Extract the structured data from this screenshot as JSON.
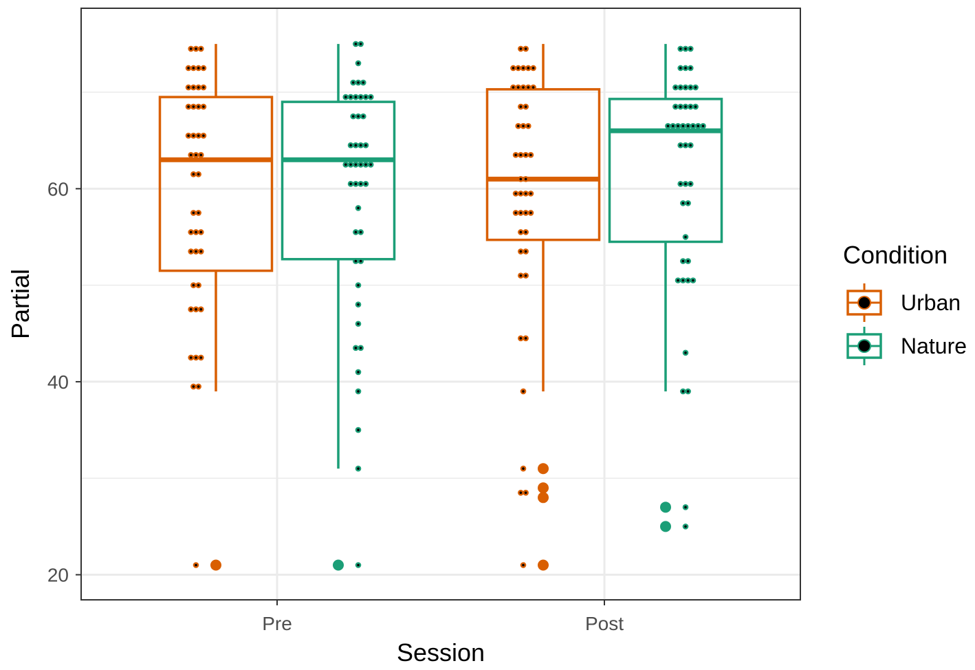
{
  "chart_data": {
    "type": "boxplot with dotplot",
    "xlabel": "Session",
    "ylabel": "Partial",
    "categories": [
      "Pre",
      "Post"
    ],
    "ylim": [
      17.4,
      78.7
    ],
    "yticks": [
      20,
      40,
      60
    ],
    "grid": true,
    "legend": {
      "title": "Condition",
      "placement": "right",
      "entries": [
        "Urban",
        "Nature"
      ]
    },
    "colors": {
      "Urban": "#D95F02",
      "Nature": "#1B9E77"
    },
    "series": [
      {
        "name": "Urban",
        "boxes": [
          {
            "category": "Pre",
            "whisker_high": 75,
            "q3": 69.5,
            "median": 63,
            "q1": 51.5,
            "whisker_low": 39,
            "outliers": [
              21
            ]
          },
          {
            "category": "Post",
            "whisker_high": 75,
            "q3": 70.3,
            "median": 61,
            "q1": 54.7,
            "whisker_low": 39,
            "outliers": [
              31,
              29,
              28,
              21
            ]
          }
        ],
        "dots": [
          {
            "category": "Pre",
            "bins": [
              [
                74.5,
                3
              ],
              [
                72.5,
                4
              ],
              [
                70.5,
                4
              ],
              [
                68.5,
                4
              ],
              [
                65.5,
                4
              ],
              [
                63.5,
                3
              ],
              [
                61.5,
                2
              ],
              [
                57.5,
                2
              ],
              [
                55.5,
                3
              ],
              [
                53.5,
                3
              ],
              [
                50,
                2
              ],
              [
                47.5,
                3
              ],
              [
                42.5,
                3
              ],
              [
                39.5,
                2
              ],
              [
                21,
                1
              ]
            ]
          },
          {
            "category": "Post",
            "bins": [
              [
                74.5,
                2
              ],
              [
                72.5,
                5
              ],
              [
                70.5,
                5
              ],
              [
                68.5,
                2
              ],
              [
                66.5,
                3
              ],
              [
                63.5,
                4
              ],
              [
                61,
                2
              ],
              [
                59.5,
                4
              ],
              [
                57.5,
                4
              ],
              [
                55.5,
                2
              ],
              [
                53.5,
                2
              ],
              [
                51,
                2
              ],
              [
                44.5,
                2
              ],
              [
                39,
                1
              ],
              [
                31,
                1
              ],
              [
                28.5,
                2
              ],
              [
                21,
                1
              ]
            ]
          }
        ]
      },
      {
        "name": "Nature",
        "boxes": [
          {
            "category": "Pre",
            "whisker_high": 75,
            "q3": 69,
            "median": 63,
            "q1": 52.7,
            "whisker_low": 31,
            "outliers": [
              21
            ]
          },
          {
            "category": "Post",
            "whisker_high": 75,
            "q3": 69.3,
            "median": 66,
            "q1": 54.5,
            "whisker_low": 39,
            "outliers": [
              27,
              25
            ]
          }
        ],
        "dots": [
          {
            "category": "Pre",
            "bins": [
              [
                75,
                2
              ],
              [
                73,
                1
              ],
              [
                71,
                3
              ],
              [
                69.5,
                6
              ],
              [
                67.5,
                3
              ],
              [
                64.5,
                4
              ],
              [
                62.5,
                6
              ],
              [
                60.5,
                4
              ],
              [
                58,
                1
              ],
              [
                55.5,
                2
              ],
              [
                52.5,
                2
              ],
              [
                50,
                1
              ],
              [
                48,
                1
              ],
              [
                46,
                1
              ],
              [
                43.5,
                2
              ],
              [
                41,
                1
              ],
              [
                39,
                1
              ],
              [
                35,
                1
              ],
              [
                31,
                1
              ],
              [
                21,
                1
              ]
            ]
          },
          {
            "category": "Post",
            "bins": [
              [
                74.5,
                3
              ],
              [
                72.5,
                3
              ],
              [
                70.5,
                5
              ],
              [
                68.5,
                5
              ],
              [
                66.5,
                8
              ],
              [
                64.5,
                3
              ],
              [
                60.5,
                3
              ],
              [
                58.5,
                2
              ],
              [
                55,
                1
              ],
              [
                52.5,
                2
              ],
              [
                50.5,
                4
              ],
              [
                43,
                1
              ],
              [
                39,
                2
              ],
              [
                27,
                1
              ],
              [
                25,
                1
              ]
            ]
          }
        ]
      }
    ]
  }
}
